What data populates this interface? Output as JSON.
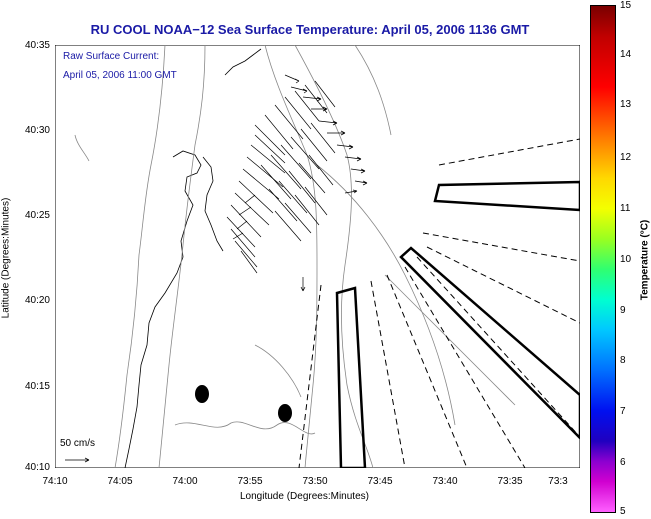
{
  "title": "RU COOL  NOAA−12  Sea Surface Temperature:  April 05, 2006 1136 GMT",
  "annotation": {
    "line1": "Raw Surface Current:",
    "line2": "April 05, 2006 11:00 GMT",
    "scale_label": "50 cm/s"
  },
  "axes": {
    "xlabel": "Longitude (Degrees:Minutes)",
    "ylabel": "Latitude (Degrees:Minutes)",
    "x_ticks": [
      "74:10",
      "74:05",
      "74:00",
      "73:55",
      "73:50",
      "73:45",
      "73:40",
      "73:35",
      "73:3"
    ],
    "y_ticks": [
      "40:35",
      "40:30",
      "40:25",
      "40:20",
      "40:15",
      "40:10"
    ]
  },
  "colorbar": {
    "title": "Temperature (°C)",
    "ticks": [
      "15",
      "14",
      "13",
      "12",
      "11",
      "10",
      "9",
      "8",
      "7",
      "6",
      "5"
    ]
  }
}
